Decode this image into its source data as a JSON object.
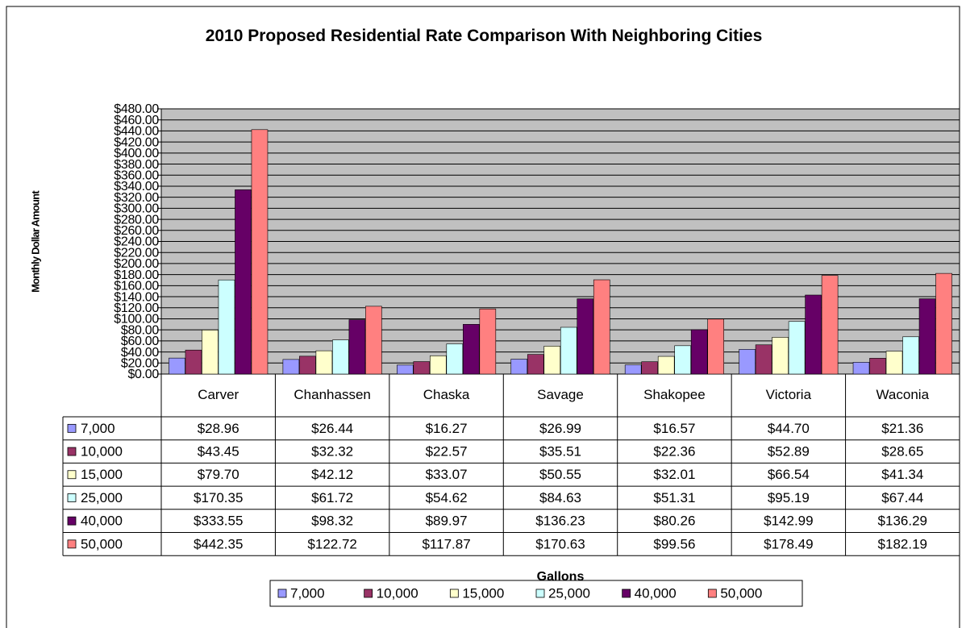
{
  "chart_data": {
    "type": "bar",
    "title": "2010 Proposed Residential Rate Comparison With Neighboring Cities",
    "ylabel": "Monthly Dollar Amount",
    "xlabel": "Gallons",
    "categories": [
      "Carver",
      "Chanhassen",
      "Chaska",
      "Savage",
      "Shakopee",
      "Victoria",
      "Waconia"
    ],
    "series": [
      {
        "name": "7,000",
        "color": "#9999ff",
        "values": [
          28.96,
          26.44,
          16.27,
          26.99,
          16.57,
          44.7,
          21.36
        ],
        "value_labels": [
          "$28.96",
          "$26.44",
          "$16.27",
          "$26.99",
          "$16.57",
          "$44.70",
          "$21.36"
        ]
      },
      {
        "name": "10,000",
        "color": "#993366",
        "values": [
          43.45,
          32.32,
          22.57,
          35.51,
          22.36,
          52.89,
          28.65
        ],
        "value_labels": [
          "$43.45",
          "$32.32",
          "$22.57",
          "$35.51",
          "$22.36",
          "$52.89",
          "$28.65"
        ]
      },
      {
        "name": "15,000",
        "color": "#ffffcc",
        "values": [
          79.7,
          42.12,
          33.07,
          50.55,
          32.01,
          66.54,
          41.34
        ],
        "value_labels": [
          "$79.70",
          "$42.12",
          "$33.07",
          "$50.55",
          "$32.01",
          "$66.54",
          "$41.34"
        ]
      },
      {
        "name": "25,000",
        "color": "#ccffff",
        "values": [
          170.35,
          61.72,
          54.62,
          84.63,
          51.31,
          95.19,
          67.44
        ],
        "value_labels": [
          "$170.35",
          "$61.72",
          "$54.62",
          "$84.63",
          "$51.31",
          "$95.19",
          "$67.44"
        ]
      },
      {
        "name": "40,000",
        "color": "#660066",
        "values": [
          333.55,
          98.32,
          89.97,
          136.23,
          80.26,
          142.99,
          136.29
        ],
        "value_labels": [
          "$333.55",
          "$98.32",
          "$89.97",
          "$136.23",
          "$80.26",
          "$142.99",
          "$136.29"
        ]
      },
      {
        "name": "50,000",
        "color": "#ff8080",
        "values": [
          442.35,
          122.72,
          117.87,
          170.63,
          99.56,
          178.49,
          182.19
        ],
        "value_labels": [
          "$442.35",
          "$122.72",
          "$117.87",
          "$170.63",
          "$99.56",
          "$178.49",
          "$182.19"
        ]
      }
    ],
    "ylim": [
      0,
      480
    ],
    "yticks": [
      {
        "value": 0,
        "label": "$0.00"
      },
      {
        "value": 20,
        "label": "$20.00"
      },
      {
        "value": 40,
        "label": "$40.00"
      },
      {
        "value": 60,
        "label": "$60.00"
      },
      {
        "value": 80,
        "label": "$80.00"
      },
      {
        "value": 100,
        "label": "$100.00"
      },
      {
        "value": 120,
        "label": "$120.00"
      },
      {
        "value": 140,
        "label": "$140.00"
      },
      {
        "value": 160,
        "label": "$160.00"
      },
      {
        "value": 180,
        "label": "$180.00"
      },
      {
        "value": 200,
        "label": "$200.00"
      },
      {
        "value": 220,
        "label": "$220.00"
      },
      {
        "value": 240,
        "label": "$240.00"
      },
      {
        "value": 260,
        "label": "$260.00"
      },
      {
        "value": 280,
        "label": "$280.00"
      },
      {
        "value": 300,
        "label": "$300.00"
      },
      {
        "value": 320,
        "label": "$320.00"
      },
      {
        "value": 340,
        "label": "$340.00"
      },
      {
        "value": 360,
        "label": "$360.00"
      },
      {
        "value": 380,
        "label": "$380.00"
      },
      {
        "value": 400,
        "label": "$400.00"
      },
      {
        "value": 420,
        "label": "$420.00"
      },
      {
        "value": 440,
        "label": "$440.00"
      },
      {
        "value": 460,
        "label": "$460.00"
      },
      {
        "value": 480,
        "label": "$480.00"
      }
    ],
    "grid": true,
    "legend": "bottom"
  }
}
